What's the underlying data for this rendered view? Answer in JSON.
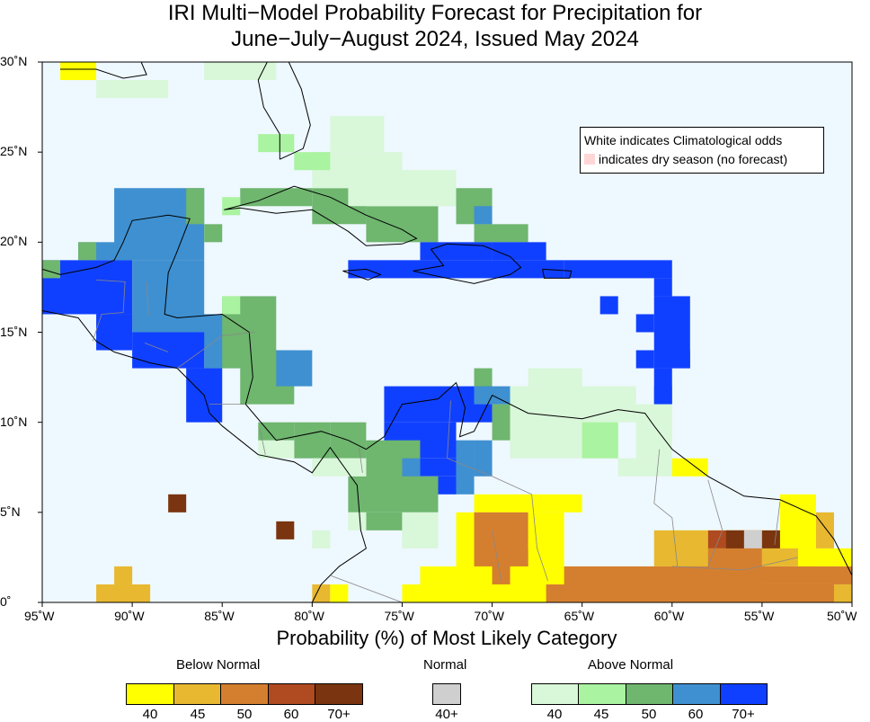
{
  "title_line1": "IRI Multi−Model Probability Forecast for Precipitation for",
  "title_line2": "June−July−August 2024, Issued May 2024",
  "note": {
    "line1": "White indicates Climatological odds",
    "line2": "indicates dry season (no forecast)",
    "dry_color": "#ffd6d6"
  },
  "axes": {
    "lat_labels": [
      "30˚N",
      "25˚N",
      "20˚N",
      "15˚N",
      "10˚N",
      "5˚N",
      "0˚"
    ],
    "lon_labels": [
      "95˚W",
      "90˚W",
      "85˚W",
      "80˚W",
      "75˚W",
      "70˚W",
      "65˚W",
      "60˚W",
      "55˚W",
      "50˚W"
    ],
    "xlabel": "Probability (%) of Most Likely Category"
  },
  "legend": {
    "below": {
      "title": "Below Normal",
      "labels": [
        "40",
        "45",
        "50",
        "60",
        "70+"
      ],
      "colors": [
        "#ffff00",
        "#e8b830",
        "#d47f30",
        "#b04a20",
        "#7a3510"
      ]
    },
    "normal": {
      "title": "Normal",
      "labels": [
        "40+"
      ],
      "colors": [
        "#cfcfcf"
      ]
    },
    "above": {
      "title": "Above Normal",
      "labels": [
        "40",
        "45",
        "50",
        "60",
        "70+"
      ],
      "colors": [
        "#d9f7d9",
        "#aaf3a0",
        "#6fb66f",
        "#3f90d0",
        "#1040ff"
      ]
    }
  },
  "colors": {
    "ocean": "#eef8ff",
    "climatology": "#ffffff"
  }
}
